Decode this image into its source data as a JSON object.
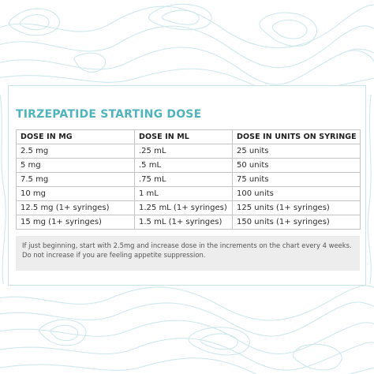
{
  "title": "TIRZEPATIDE STARTING DOSE",
  "table": {
    "headers": [
      "DOSE IN MG",
      "DOSE IN ML",
      "DOSE IN UNITS ON SYRINGE"
    ],
    "rows": [
      [
        "2.5 mg",
        ".25 mL",
        "25 units"
      ],
      [
        "5 mg",
        ".5 mL",
        "50 units"
      ],
      [
        "7.5 mg",
        ".75 mL",
        "75 units"
      ],
      [
        "10 mg",
        "1 mL",
        "100 units"
      ],
      [
        "12.5 mg (1+ syringes)",
        "1.25 mL (1+ syringes)",
        "125 units (1+ syringes)"
      ],
      [
        "15 mg (1+ syringes)",
        "1.5 mL (1+ syringes)",
        "150 units (1+ syringes)"
      ]
    ]
  },
  "note": "If just beginning, start with 2.5mg and increase dose in the increments on the chart every 4 weeks. Do not increase if you are feeling appetite suppression.",
  "colors": {
    "accent": "#4fb3bd",
    "topo_lines": "#cfe8ec",
    "note_bg": "#ededed",
    "table_border": "#c4c4c4"
  }
}
